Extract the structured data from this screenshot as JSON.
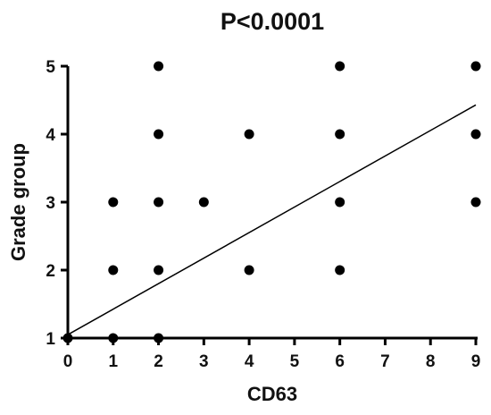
{
  "chart_data": {
    "type": "scatter",
    "title": "P<0.0001",
    "xlabel": "CD63",
    "ylabel": "Grade group",
    "xlim": [
      0,
      9
    ],
    "ylim": [
      1,
      5
    ],
    "x_ticks": [
      "0",
      "1",
      "2",
      "3",
      "4",
      "5",
      "6",
      "7",
      "8",
      "9"
    ],
    "y_ticks": [
      "1",
      "2",
      "3",
      "4",
      "5"
    ],
    "grid": false,
    "legend": "none",
    "series": [
      {
        "points": [
          {
            "x": 0,
            "y": 1
          },
          {
            "x": 1,
            "y": 1
          },
          {
            "x": 1,
            "y": 2
          },
          {
            "x": 1,
            "y": 3
          },
          {
            "x": 2,
            "y": 1
          },
          {
            "x": 2,
            "y": 2
          },
          {
            "x": 2,
            "y": 3
          },
          {
            "x": 2,
            "y": 4
          },
          {
            "x": 2,
            "y": 5
          },
          {
            "x": 3,
            "y": 3
          },
          {
            "x": 4,
            "y": 2
          },
          {
            "x": 4,
            "y": 4
          },
          {
            "x": 6,
            "y": 2
          },
          {
            "x": 6,
            "y": 3
          },
          {
            "x": 6,
            "y": 4
          },
          {
            "x": 6,
            "y": 5
          },
          {
            "x": 9,
            "y": 3
          },
          {
            "x": 9,
            "y": 4
          },
          {
            "x": 9,
            "y": 5
          }
        ]
      }
    ],
    "regression_line": {
      "x": [
        0,
        9
      ],
      "y": [
        1.05,
        4.43
      ]
    },
    "colors": {
      "points": "#000000",
      "line": "#000000",
      "axes": "#000000"
    }
  }
}
